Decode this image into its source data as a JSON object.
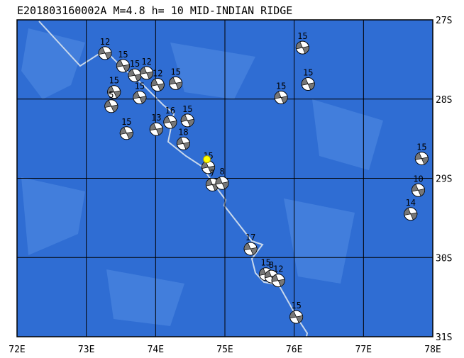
{
  "header": {
    "title": "E201803160002A M=4.8 h= 10 MID-INDIAN RIDGE"
  },
  "axes": {
    "lon_labels": [
      {
        "value": 72,
        "label": "72E"
      },
      {
        "value": 73,
        "label": "73E"
      },
      {
        "value": 74,
        "label": "74E"
      },
      {
        "value": 75,
        "label": "75E"
      },
      {
        "value": 76,
        "label": "76E"
      },
      {
        "value": 77,
        "label": "77E"
      },
      {
        "value": 78,
        "label": "78E"
      }
    ],
    "lat_labels": [
      {
        "value": 27,
        "label": "27S"
      },
      {
        "value": 28,
        "label": "28S"
      },
      {
        "value": 29,
        "label": "29S"
      },
      {
        "value": 30,
        "label": "30S"
      },
      {
        "value": 31,
        "label": "31S"
      }
    ]
  },
  "epicenter": {
    "lon": 74.74,
    "lat": 28.76
  },
  "events": [
    {
      "depth": 12,
      "lon": 73.27,
      "lat": 27.42
    },
    {
      "depth": 15,
      "lon": 73.53,
      "lat": 27.58
    },
    {
      "depth": 15,
      "lon": 73.7,
      "lat": 27.7
    },
    {
      "depth": 12,
      "lon": 73.87,
      "lat": 27.67
    },
    {
      "depth": 12,
      "lon": 74.03,
      "lat": 27.82
    },
    {
      "depth": 15,
      "lon": 74.29,
      "lat": 27.8
    },
    {
      "depth": 15,
      "lon": 73.77,
      "lat": 27.98
    },
    {
      "depth": 15,
      "lon": 73.4,
      "lat": 27.91
    },
    {
      "depth": 5,
      "lon": 73.36,
      "lat": 28.09
    },
    {
      "depth": 15,
      "lon": 73.58,
      "lat": 28.43
    },
    {
      "depth": 13,
      "lon": 74.01,
      "lat": 28.38
    },
    {
      "depth": 16,
      "lon": 74.21,
      "lat": 28.29
    },
    {
      "depth": 15,
      "lon": 74.46,
      "lat": 28.27
    },
    {
      "depth": 18,
      "lon": 74.4,
      "lat": 28.56
    },
    {
      "depth": 15,
      "lon": 74.76,
      "lat": 28.86
    },
    {
      "depth": 7,
      "lon": 74.82,
      "lat": 29.08
    },
    {
      "depth": 8,
      "lon": 74.96,
      "lat": 29.06
    },
    {
      "depth": 17,
      "lon": 75.37,
      "lat": 29.89
    },
    {
      "depth": 15,
      "lon": 75.59,
      "lat": 30.21
    },
    {
      "depth": 8,
      "lon": 75.67,
      "lat": 30.24
    },
    {
      "depth": 12,
      "lon": 75.77,
      "lat": 30.29
    },
    {
      "depth": 15,
      "lon": 76.03,
      "lat": 30.75
    },
    {
      "depth": 15,
      "lon": 76.12,
      "lat": 27.35
    },
    {
      "depth": 15,
      "lon": 76.2,
      "lat": 27.81
    },
    {
      "depth": 15,
      "lon": 75.81,
      "lat": 27.98
    },
    {
      "depth": 15,
      "lon": 77.84,
      "lat": 28.75
    },
    {
      "depth": 10,
      "lon": 77.79,
      "lat": 29.15
    },
    {
      "depth": 14,
      "lon": 77.68,
      "lat": 29.45
    }
  ]
}
